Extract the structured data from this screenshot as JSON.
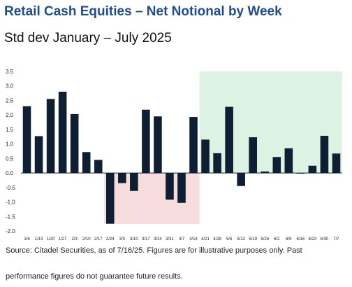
{
  "title": "Retail Cash Equities – Net Notional by Week",
  "subtitle": "Std dev January – July 2025",
  "source_line1": "Source: Citadel Securities, as of 7/16/25. Figures are for illustrative purposes only. Past",
  "source_line2": "performance figures do not guarantee future results.",
  "colors": {
    "bar": "#0f1f33",
    "title": "#1f4e8c",
    "negative_shade": "#f6dcdc",
    "positive_shade": "#dcf3e3"
  },
  "chart_data": {
    "type": "bar",
    "title": "Retail Cash Equities – Net Notional by Week",
    "subtitle": "Std dev January – July 2025",
    "xlabel": "",
    "ylabel": "",
    "ylim": [
      -2.0,
      3.5
    ],
    "yticks": [
      "3.5",
      "3.0",
      "2.5",
      "2.0",
      "1.5",
      "1.0",
      "0.5",
      "0.0",
      "-0.5",
      "-1.0",
      "-1.5",
      "-2.0"
    ],
    "grid": false,
    "categories": [
      "1/6",
      "1/13",
      "1/20",
      "1/27",
      "2/3",
      "2/10",
      "2/17",
      "2/24",
      "3/3",
      "3/10",
      "3/17",
      "3/24",
      "3/31",
      "4/7",
      "4/14",
      "4/21",
      "4/28",
      "5/5",
      "5/12",
      "5/19",
      "5/26",
      "6/2",
      "6/9",
      "6/16",
      "6/23",
      "6/30",
      "7/7"
    ],
    "values": [
      2.3,
      1.27,
      2.55,
      2.8,
      2.03,
      0.72,
      0.45,
      -1.75,
      -0.35,
      -0.62,
      2.18,
      1.95,
      -0.92,
      -1.03,
      1.93,
      1.15,
      0.68,
      2.28,
      -0.45,
      1.23,
      0.05,
      0.55,
      0.85,
      -0.02,
      0.25,
      1.28,
      0.67
    ],
    "shaded_regions": [
      {
        "from": "2/24",
        "to": "4/14",
        "color": "#f6dcdc"
      },
      {
        "from": "4/21",
        "to": "7/7",
        "color": "#dcf3e3"
      }
    ]
  }
}
